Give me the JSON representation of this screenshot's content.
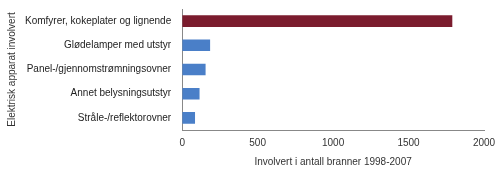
{
  "chart_data": {
    "type": "bar",
    "orientation": "horizontal",
    "categories": [
      "Komfyrer, kokeplater og lignende",
      "Glødelamper med utstyr",
      "Panel-/gjennomstrømningsovner",
      "Annet belysningsutstyr",
      "Stråle-/reflektorovner"
    ],
    "values": [
      1790,
      185,
      155,
      115,
      85
    ],
    "colors": [
      "#7b1c2e",
      "#4a7fc8",
      "#4a7fc8",
      "#4a7fc8",
      "#4a7fc8"
    ],
    "x_label": "Involvert i antall branner 1998-2007",
    "y_label": "Elektrisk apparat involvert",
    "xlim": [
      0,
      2000
    ],
    "xticks": [
      0,
      500,
      1000,
      1500,
      2000
    ],
    "grid": false
  }
}
